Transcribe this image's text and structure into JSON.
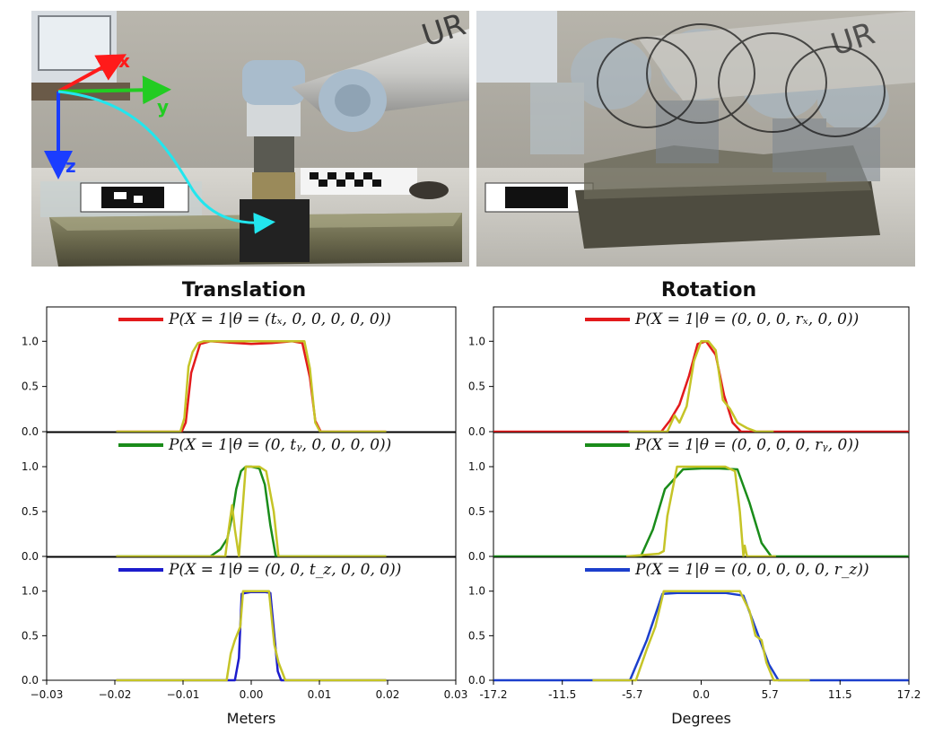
{
  "photos": [
    {
      "name": "robot-photo-left",
      "axis_labels": {
        "x": "x",
        "y": "y",
        "z": "z"
      },
      "colors": {
        "x": "#ff1a1a",
        "y": "#22cc22",
        "z": "#1a3dff",
        "path": "#22e6ee"
      }
    },
    {
      "name": "robot-photo-right-overlay",
      "robot_text": "UR"
    }
  ],
  "chart_data": [
    {
      "type": "line",
      "column": "left",
      "title": "Translation",
      "xlabel": "Meters",
      "xlim": [
        -0.03,
        0.03
      ],
      "xticks": [
        "−0.03",
        "−0.02",
        "−0.01",
        "0.00",
        "0.01",
        "0.02",
        "0.03"
      ],
      "xtick_values": [
        -0.03,
        -0.02,
        -0.01,
        0.0,
        0.01,
        0.02,
        0.03
      ],
      "panels": [
        {
          "legend": "P(X = 1|θ = (tₓ, 0, 0, 0, 0, 0))",
          "ylim": [
            0,
            1.38
          ],
          "yticks": [
            "0.0",
            "0.5",
            "1.0"
          ],
          "series": [
            {
              "color": "#e31a1c",
              "x": [
                -0.0198,
                -0.0102,
                -0.0096,
                -0.0088,
                -0.0075,
                -0.006,
                -0.004,
                0.0,
                0.003,
                0.006,
                0.0075,
                0.0086,
                0.0094,
                0.0102,
                0.0198
              ],
              "y": [
                0.0,
                0.0,
                0.1,
                0.65,
                0.97,
                1.0,
                0.99,
                0.97,
                0.98,
                1.0,
                0.98,
                0.6,
                0.12,
                0.0,
                0.0
              ]
            },
            {
              "color": "#c5c427",
              "x": [
                -0.0198,
                -0.0104,
                -0.0098,
                -0.0092,
                -0.0086,
                -0.0078,
                -0.007,
                -0.004,
                0.0,
                0.006,
                0.0078,
                0.0086,
                0.0094,
                0.0101,
                0.0198
              ],
              "y": [
                0.0,
                0.0,
                0.15,
                0.72,
                0.88,
                0.98,
                1.0,
                1.0,
                1.0,
                1.0,
                1.0,
                0.7,
                0.1,
                0.0,
                0.0
              ]
            }
          ]
        },
        {
          "legend": "P(X = 1|θ = (0, tᵧ, 0, 0, 0, 0))",
          "ylim": [
            0,
            1.38
          ],
          "yticks": [
            "0.0",
            "0.5",
            "1.0"
          ],
          "series": [
            {
              "color": "#1a8c1a",
              "x": [
                -0.0198,
                -0.006,
                -0.0045,
                -0.0035,
                -0.0028,
                -0.0022,
                -0.0015,
                -0.0008,
                0.0,
                0.0012,
                0.002,
                0.0028,
                0.0036,
                0.0198
              ],
              "y": [
                0.0,
                0.0,
                0.08,
                0.2,
                0.45,
                0.75,
                0.95,
                1.0,
                1.0,
                0.98,
                0.8,
                0.35,
                0.0,
                0.0
              ]
            },
            {
              "color": "#c5c427",
              "x": [
                -0.0198,
                -0.0038,
                -0.0033,
                -0.0028,
                -0.0024,
                -0.0018,
                -0.0012,
                -0.0008,
                0.0,
                0.0012,
                0.0022,
                0.0033,
                0.004,
                0.0198
              ],
              "y": [
                0.0,
                0.0,
                0.3,
                0.57,
                0.3,
                0.0,
                0.6,
                1.0,
                1.0,
                1.0,
                0.95,
                0.5,
                0.0,
                0.0
              ]
            }
          ]
        },
        {
          "legend": "P(X = 1|θ = (0, 0, t_z, 0, 0, 0))",
          "ylim": [
            0,
            1.38
          ],
          "yticks": [
            "0.0",
            "0.5",
            "1.0"
          ],
          "series": [
            {
              "color": "#1c1ccc",
              "x": [
                -0.0198,
                -0.0024,
                -0.0018,
                -0.0014,
                -0.0008,
                0.0,
                0.002,
                0.0028,
                0.0034,
                0.0039,
                0.0044,
                0.0198
              ],
              "y": [
                0.0,
                0.0,
                0.25,
                0.97,
                0.98,
                0.99,
                0.99,
                0.98,
                0.5,
                0.1,
                0.0,
                0.0
              ]
            },
            {
              "color": "#c5c427",
              "x": [
                -0.0198,
                -0.0036,
                -0.003,
                -0.0024,
                -0.0016,
                -0.0012,
                0.0,
                0.0026,
                0.003,
                0.0034,
                0.004,
                0.0046,
                0.005,
                0.0198
              ],
              "y": [
                0.0,
                0.0,
                0.3,
                0.45,
                0.6,
                1.0,
                1.0,
                1.0,
                0.7,
                0.4,
                0.2,
                0.08,
                0.0,
                0.0
              ]
            }
          ]
        }
      ]
    },
    {
      "type": "line",
      "column": "right",
      "title": "Rotation",
      "xlabel": "Degrees",
      "xlim": [
        -17.2,
        17.2
      ],
      "xticks": [
        "-17.2",
        "-11.5",
        "-5.7",
        "0.0",
        "5.7",
        "11.5",
        "17.2"
      ],
      "xtick_values": [
        -17.2,
        -11.5,
        -5.7,
        0.0,
        5.7,
        11.5,
        17.2
      ],
      "panels": [
        {
          "legend": "P(X = 1|θ = (0, 0, 0, rₓ, 0, 0))",
          "ylim": [
            0,
            1.38
          ],
          "yticks": [
            "0.0",
            "0.5",
            "1.0"
          ],
          "series": [
            {
              "color": "#e31a1c",
              "x": [
                -17.2,
                -3.3,
                -2.6,
                -1.8,
                -1.0,
                -0.3,
                0.4,
                1.2,
                1.9,
                2.6,
                3.3,
                17.2
              ],
              "y": [
                0.0,
                0.0,
                0.12,
                0.3,
                0.62,
                0.97,
                1.0,
                0.85,
                0.4,
                0.1,
                0.0,
                0.0
              ]
            },
            {
              "color": "#c5c427",
              "x": [
                -6.0,
                -2.8,
                -2.2,
                -1.8,
                -1.2,
                -0.6,
                0.0,
                0.6,
                1.2,
                1.8,
                2.4,
                3.0,
                3.8,
                4.6,
                6.0
              ],
              "y": [
                0.0,
                0.0,
                0.18,
                0.1,
                0.28,
                0.78,
                1.0,
                1.0,
                0.9,
                0.35,
                0.25,
                0.1,
                0.04,
                0.0,
                0.0
              ]
            }
          ]
        },
        {
          "legend": "P(X = 1|θ = (0, 0, 0, 0, rᵧ, 0))",
          "ylim": [
            0,
            1.38
          ],
          "yticks": [
            "0.0",
            "0.5",
            "1.0"
          ],
          "series": [
            {
              "color": "#1a8c1a",
              "x": [
                -17.2,
                -5.0,
                -4.0,
                -3.0,
                -1.5,
                0.0,
                1.5,
                3.0,
                4.0,
                5.0,
                5.8,
                17.2
              ],
              "y": [
                0.0,
                0.0,
                0.3,
                0.75,
                0.97,
                0.98,
                0.98,
                0.97,
                0.6,
                0.15,
                0.0,
                0.0
              ]
            },
            {
              "color": "#c5c427",
              "x": [
                -6.2,
                -3.5,
                -3.1,
                -2.8,
                -2.0,
                0.0,
                2.0,
                2.8,
                3.2,
                3.5,
                3.6,
                3.8,
                4.0,
                6.2
              ],
              "y": [
                0.0,
                0.03,
                0.06,
                0.45,
                1.0,
                1.0,
                1.0,
                0.95,
                0.5,
                0.0,
                0.12,
                0.0,
                0.0,
                0.0
              ]
            }
          ]
        },
        {
          "legend": "P(X = 1|θ = (0, 0, 0, 0, 0, r_z))",
          "ylim": [
            0,
            1.38
          ],
          "yticks": [
            "0.0",
            "0.5",
            "1.0"
          ],
          "series": [
            {
              "color": "#1c3fcc",
              "x": [
                -17.2,
                -5.9,
                -4.5,
                -3.2,
                -2.0,
                0.0,
                2.0,
                3.5,
                4.6,
                5.6,
                6.4,
                17.2
              ],
              "y": [
                0.0,
                0.0,
                0.45,
                0.97,
                0.98,
                0.98,
                0.98,
                0.95,
                0.55,
                0.18,
                0.0,
                0.0
              ]
            },
            {
              "color": "#c5c427",
              "x": [
                -9.0,
                -5.4,
                -4.5,
                -3.8,
                -3.1,
                0.0,
                3.2,
                4.0,
                4.5,
                5.0,
                5.4,
                6.0,
                9.0
              ],
              "y": [
                0.0,
                0.0,
                0.35,
                0.6,
                1.0,
                1.0,
                1.0,
                0.78,
                0.5,
                0.45,
                0.2,
                0.0,
                0.0
              ]
            }
          ]
        }
      ]
    }
  ]
}
